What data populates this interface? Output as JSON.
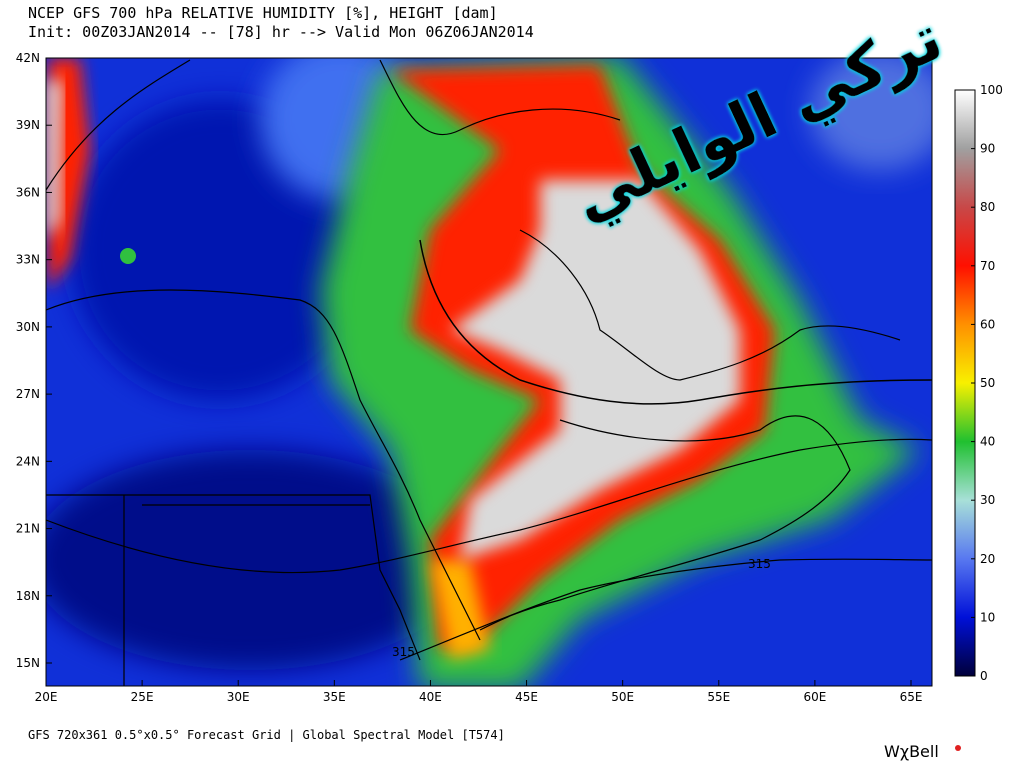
{
  "header": {
    "title": "NCEP GFS 700 hPa RELATIVE HUMIDITY [%], HEIGHT [dam]",
    "subtitle": "Init: 00Z03JAN2014 -- [78] hr --> Valid Mon 06Z06JAN2014"
  },
  "map": {
    "lat_labels": [
      "15N",
      "18N",
      "21N",
      "24N",
      "27N",
      "30N",
      "33N",
      "36N",
      "39N",
      "42N"
    ],
    "lon_labels": [
      "20E",
      "25E",
      "30E",
      "35E",
      "40E",
      "45E",
      "50E",
      "55E",
      "60E",
      "65E"
    ],
    "contour_labels": [
      "315",
      "315"
    ]
  },
  "colorbar": {
    "ticks": [
      0,
      10,
      20,
      30,
      40,
      50,
      60,
      70,
      80,
      90,
      100
    ]
  },
  "watermark": "تركي الوايلي",
  "footer": {
    "text": "GFS 720x361 0.5°x0.5° Forecast Grid | Global Spectral Model [T574]",
    "brand": "WχBell"
  }
}
